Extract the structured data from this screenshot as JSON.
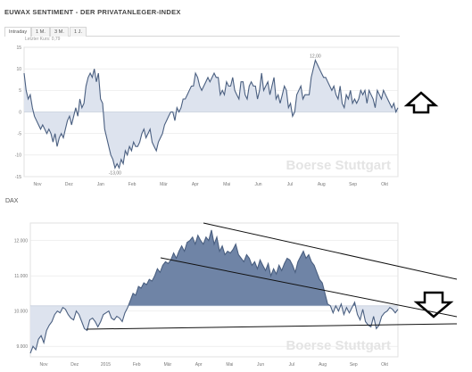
{
  "header": {
    "title": "EUWAX SENTIMENT - DER PRIVATANLEGER-INDEX",
    "tabs": [
      "Intraday",
      "1 M.",
      "3 M.",
      "1 J."
    ],
    "last_price": "Letzter Kurs: 0,79"
  },
  "watermark": "Boerse Stuttgart",
  "colors": {
    "line": "#4a5f80",
    "fill_light": "#dde3ee",
    "fill_dark": "#6f84a6",
    "grid": "#e6e6e6"
  },
  "annotations": {
    "up_arrow": "up-arrow-icon",
    "down_arrow": "down-arrow-icon"
  },
  "chart_data": [
    {
      "type": "area",
      "title": "EUWAX SENTIMENT - DER PRIVATANLEGER-INDEX",
      "xlabel": "",
      "ylabel": "",
      "x_ticks": [
        "Nov",
        "Dez",
        "Jan",
        "Feb",
        "Mär",
        "Apr",
        "Mai",
        "Jun",
        "Jul",
        "Aug",
        "Sep",
        "Okt"
      ],
      "y_ticks": [
        "15",
        "10",
        "5",
        "0",
        "-5",
        "-10",
        "-15"
      ],
      "ylim": [
        -15,
        15
      ],
      "baseline": 0,
      "annotations": {
        "max": "12,00",
        "min": "-13,00"
      },
      "series": [
        {
          "values": [
            9,
            5,
            3,
            4,
            1,
            -1,
            -2,
            -3,
            -4,
            -3,
            -4,
            -5,
            -4,
            -5,
            -7,
            -5,
            -8,
            -6,
            -5,
            -6,
            -4,
            -2,
            -1,
            -3,
            -1,
            1,
            -1,
            3,
            1,
            2,
            6,
            8,
            9,
            8,
            10,
            7,
            9,
            3,
            2,
            -4,
            -6,
            -8,
            -10,
            -11,
            -13,
            -12,
            -13,
            -11,
            -12,
            -9,
            -10,
            -8,
            -9,
            -7,
            -8,
            -8,
            -7,
            -5,
            -4,
            -6,
            -5,
            -4,
            -7,
            -8,
            -9,
            -7,
            -6,
            -5,
            -3,
            -2,
            -1,
            0,
            0,
            -2,
            1,
            0,
            1,
            3,
            3,
            4,
            5,
            6,
            6,
            9,
            8,
            6,
            5,
            6,
            7,
            8,
            7,
            8,
            9,
            8,
            8,
            4,
            5,
            4,
            7,
            6,
            6,
            8,
            5,
            4,
            3,
            7,
            7,
            4,
            3,
            6,
            7,
            6,
            6,
            3,
            5,
            9,
            5,
            6,
            7,
            4,
            6,
            8,
            3,
            4,
            2,
            4,
            6,
            5,
            1,
            2,
            -1,
            0,
            4,
            5,
            6,
            3,
            4,
            4,
            4,
            8,
            10,
            12,
            11,
            10,
            9,
            8,
            8,
            7,
            6,
            5,
            6,
            4,
            3,
            6,
            2,
            1,
            4,
            3,
            5,
            2,
            3,
            2,
            3,
            5,
            4,
            5,
            2,
            5,
            4,
            3,
            1,
            5,
            4,
            3,
            5,
            4,
            3,
            2,
            1,
            2,
            0,
            1
          ]
        }
      ]
    },
    {
      "type": "area",
      "title": "DAX",
      "xlabel": "",
      "ylabel": "",
      "x_ticks": [
        "Nov",
        "Dez",
        "2015",
        "Feb",
        "Mär",
        "Apr",
        "Mai",
        "Jun",
        "Jul",
        "Aug",
        "Sep",
        "Okt"
      ],
      "y_ticks": [
        "12.000",
        "11.000",
        "10.000",
        "9.000"
      ],
      "ylim": [
        8700,
        12500
      ],
      "baseline": 10150,
      "series": [
        {
          "values": [
            8800,
            9000,
            8900,
            9200,
            9300,
            9100,
            9450,
            9600,
            9700,
            9900,
            10000,
            9950,
            10100,
            10050,
            9900,
            9800,
            9750,
            10000,
            9900,
            9700,
            9500,
            9450,
            9750,
            9800,
            9700,
            9550,
            9700,
            9900,
            9950,
            10000,
            9800,
            9750,
            9850,
            9800,
            9700,
            9950,
            10100,
            10300,
            10500,
            10450,
            10700,
            10650,
            10800,
            10750,
            10900,
            10850,
            11000,
            11200,
            11100,
            11300,
            11400,
            11350,
            11450,
            11650,
            11500,
            11700,
            11850,
            11700,
            11950,
            12000,
            12100,
            11900,
            12150,
            12000,
            11900,
            12100,
            12000,
            12300,
            11900,
            12100,
            11700,
            11850,
            11600,
            11700,
            11650,
            11750,
            11900,
            11600,
            11500,
            11400,
            11600,
            11500,
            11300,
            11400,
            11200,
            11450,
            11300,
            11150,
            11350,
            11000,
            11200,
            11050,
            11300,
            11150,
            11350,
            11500,
            11450,
            11300,
            11100,
            11400,
            11550,
            11700,
            11500,
            11600,
            11400,
            11300,
            11100,
            10900,
            10800,
            10500,
            10200,
            10150,
            9950,
            10150,
            10000,
            10200,
            9900,
            10100,
            9950,
            10100,
            10250,
            9900,
            9750,
            10050,
            9700,
            9600,
            9550,
            9850,
            9500,
            9600,
            9850,
            9950,
            10000,
            10100,
            10050,
            9950,
            10050
          ]
        }
      ]
    }
  ]
}
